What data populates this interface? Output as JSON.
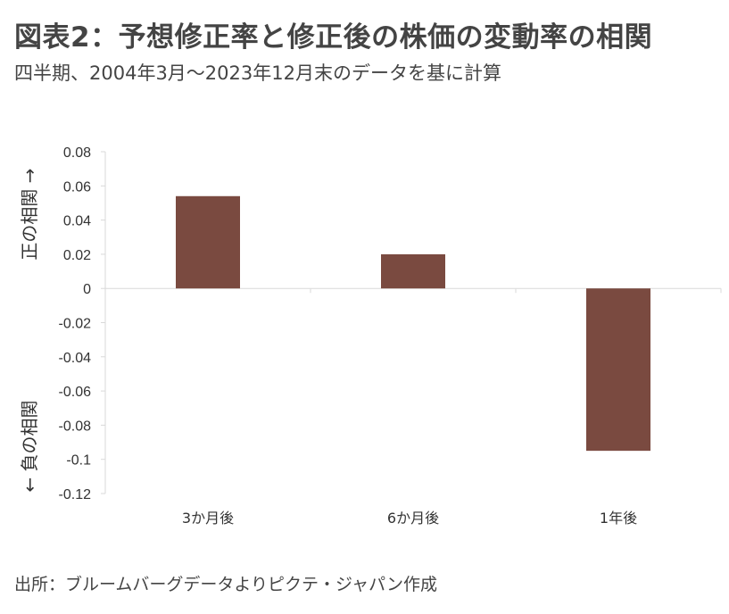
{
  "title": "図表2：予想修正率と修正後の株価の変動率の相関",
  "subtitle": "四半期、2004年3月～2023年12月末のデータを基に計算",
  "source": "出所：ブルームバーグデータよりピクテ・ジャパン作成",
  "chart_data": {
    "type": "bar",
    "categories": [
      "3か月後",
      "6か月後",
      "1年後"
    ],
    "values": [
      0.054,
      0.02,
      -0.095
    ],
    "ylim": [
      -0.12,
      0.08
    ],
    "yticks": [
      "0.08",
      "0.06",
      "0.04",
      "0.02",
      "0",
      "-0.02",
      "-0.04",
      "-0.06",
      "-0.08",
      "-0.1",
      "-0.12"
    ],
    "ylabel_positive": "正の相関 →",
    "ylabel_negative": "← 負の相関",
    "bar_color": "#7a4a40",
    "grid": false,
    "legend": "none"
  }
}
